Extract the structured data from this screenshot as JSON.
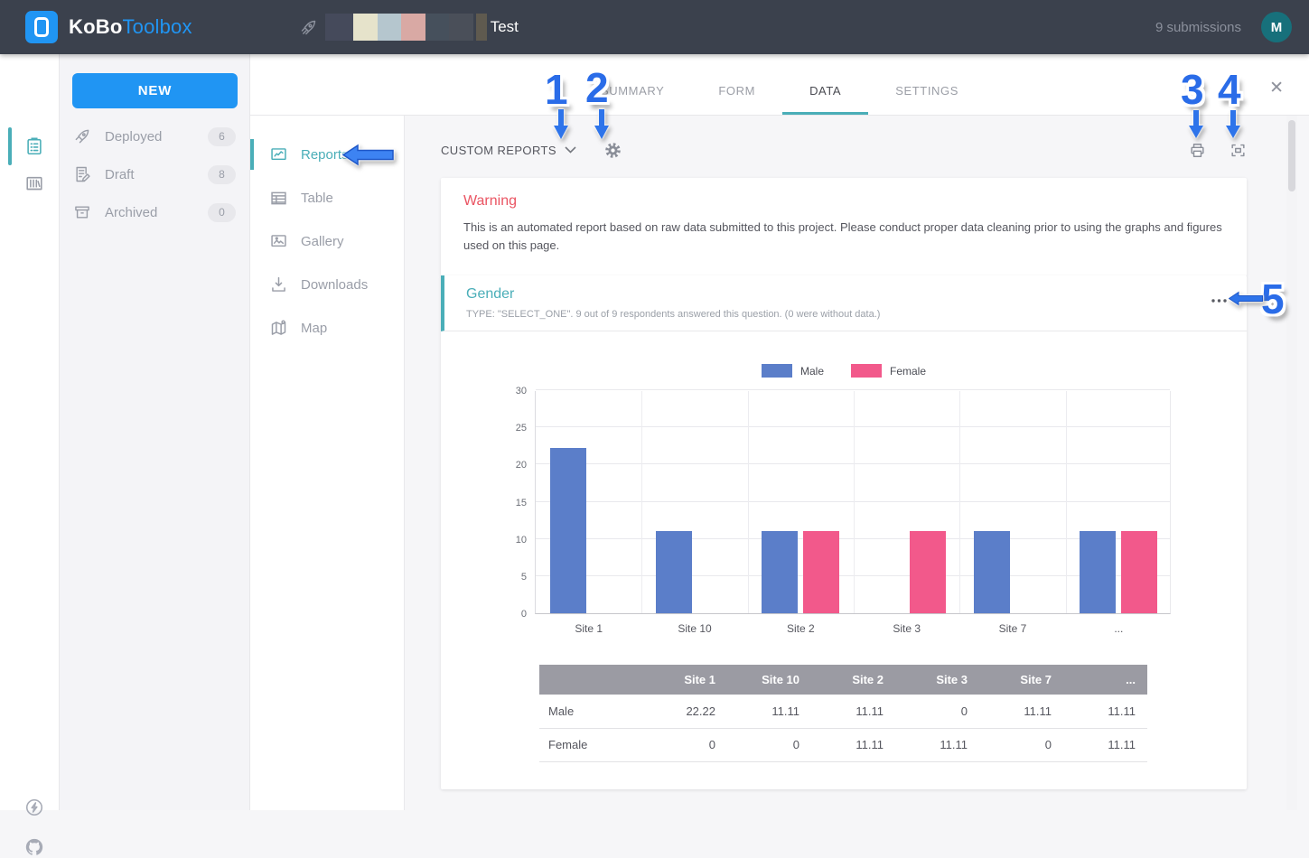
{
  "topbar": {
    "brand_bold": "KoBo",
    "brand_light": "Toolbox",
    "project_title": "Test",
    "submissions": "9 submissions",
    "avatar_initial": "M",
    "redaction_styles": [
      "width:31px;background:#454a5b",
      "width:27px;background:#e6e3cb",
      "width:26px;background:#b5c6ce",
      "width:27px;background:#d9a9a4",
      "width:26px;background:#46505c",
      "width:27px;background:#4a4f59",
      "width:12px;background:#5f5a4f;margin-left:3px"
    ]
  },
  "projects_panel": {
    "new_button": "NEW",
    "items": [
      {
        "label": "Deployed",
        "count": "6"
      },
      {
        "label": "Draft",
        "count": "8"
      },
      {
        "label": "Archived",
        "count": "0"
      }
    ]
  },
  "tabs": {
    "items": [
      "SUMMARY",
      "FORM",
      "DATA",
      "SETTINGS"
    ],
    "active": "DATA"
  },
  "subnav": {
    "items": [
      {
        "label": "Reports"
      },
      {
        "label": "Table"
      },
      {
        "label": "Gallery"
      },
      {
        "label": "Downloads"
      },
      {
        "label": "Map"
      }
    ],
    "active": "Reports"
  },
  "report_toolbar": {
    "custom_reports_label": "CUSTOM REPORTS"
  },
  "warning": {
    "title": "Warning",
    "body": "This is an automated report based on raw data submitted to this project. Please conduct proper data cleaning prior to using the graphs and figures used on this page."
  },
  "gender_card": {
    "title": "Gender",
    "subtitle": "TYPE: \"SELECT_ONE\". 9 out of 9 respondents answered this question. (0 were without data.)"
  },
  "chart_data": {
    "type": "bar",
    "title": "Gender",
    "categories": [
      "Site 1",
      "Site 10",
      "Site 2",
      "Site 3",
      "Site 7",
      "..."
    ],
    "series": [
      {
        "name": "Male",
        "color": "#5b7ec9",
        "values": [
          22.22,
          11.11,
          11.11,
          0,
          11.11,
          11.11
        ]
      },
      {
        "name": "Female",
        "color": "#f2598b",
        "values": [
          0,
          0,
          11.11,
          11.11,
          0,
          11.11
        ]
      }
    ],
    "xlabel": "",
    "ylabel": "",
    "ylim": [
      0,
      30
    ],
    "yticks": [
      0,
      5,
      10,
      15,
      20,
      25,
      30
    ],
    "grid": true,
    "legend_position": "top"
  },
  "table": {
    "columns": [
      "",
      "Site 1",
      "Site 10",
      "Site 2",
      "Site 3",
      "Site 7",
      "..."
    ],
    "rows": [
      {
        "label": "Male",
        "values": [
          "22.22",
          "11.11",
          "11.11",
          "0",
          "11.11",
          "11.11"
        ]
      },
      {
        "label": "Female",
        "values": [
          "0",
          "0",
          "11.11",
          "11.11",
          "0",
          "11.11"
        ]
      }
    ]
  },
  "annotations": {
    "labels": [
      "1",
      "2",
      "3",
      "4",
      "5"
    ]
  },
  "icons": {
    "close_glyph": "✕"
  },
  "colors": {
    "accent_teal": "#4aaeb8",
    "primary_blue": "#2095f3",
    "topbar_bg": "#3b414d",
    "warning_red": "#ea5462",
    "male_blue": "#5b7ec9",
    "female_pink": "#f2598b",
    "table_header_bg": "#9b9ba3",
    "annotation_blue": "#2a6ce8"
  }
}
